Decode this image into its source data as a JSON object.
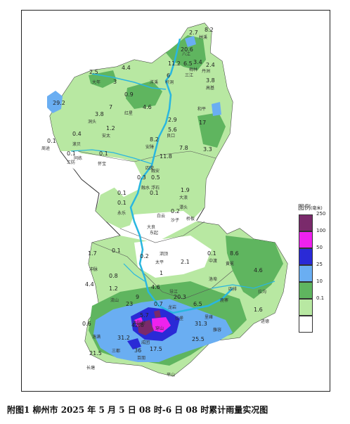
{
  "caption": "附图1  柳州市 2025 年 5 月 5 日 08 时-6 日 08 时累计雨量实况图",
  "legend": {
    "title": "图例",
    "unit": "(毫米)",
    "bins": [
      {
        "label": "250",
        "color": "#7a2a6b"
      },
      {
        "label": "100",
        "color": "#ee22ee"
      },
      {
        "label": "50",
        "color": "#2a2ad6"
      },
      {
        "label": "25",
        "color": "#6aaef2"
      },
      {
        "label": "10",
        "color": "#5fb55f"
      },
      {
        "label": "0.1",
        "color": "#b8e8a2"
      },
      {
        "label": "",
        "color": "#ffffff"
      }
    ]
  },
  "colors": {
    "region_light": "#b8e8a2",
    "region_medium": "#5fb55f",
    "region_blue": "#6aaef2",
    "region_darkblue": "#2a2ad6",
    "region_magenta": "#ee22ee",
    "region_purple": "#7a2a6b",
    "river": "#29b6e0",
    "boundary": "#333333"
  },
  "rain_values": [
    {
      "v": "2.7"
    },
    {
      "v": "8.2"
    },
    {
      "v": "20.6"
    },
    {
      "v": "11.2"
    },
    {
      "v": "6.5"
    },
    {
      "v": "3.4"
    },
    {
      "v": "2.4"
    },
    {
      "v": "6"
    },
    {
      "v": "3.8"
    },
    {
      "v": "4.4"
    },
    {
      "v": "2.5"
    },
    {
      "v": "3"
    },
    {
      "v": "29.2"
    },
    {
      "v": "0.9"
    },
    {
      "v": "4.6"
    },
    {
      "v": "3.8"
    },
    {
      "v": "7"
    },
    {
      "v": "1.2"
    },
    {
      "v": "2.9"
    },
    {
      "v": "5.6"
    },
    {
      "v": "17"
    },
    {
      "v": "0.1"
    },
    {
      "v": "0.4"
    },
    {
      "v": "8.2"
    },
    {
      "v": "3.3"
    },
    {
      "v": "0.1"
    },
    {
      "v": "0.1"
    },
    {
      "v": "7.8"
    },
    {
      "v": "11.8"
    },
    {
      "v": "0.3"
    },
    {
      "v": "0.5"
    },
    {
      "v": "1.9"
    },
    {
      "v": "0.1"
    },
    {
      "v": "0.1"
    },
    {
      "v": "0.2"
    },
    {
      "v": "0.1"
    },
    {
      "v": "1.7"
    },
    {
      "v": "0.1"
    },
    {
      "v": "0.2"
    },
    {
      "v": "0.1"
    },
    {
      "v": "8.6"
    },
    {
      "v": "0.8"
    },
    {
      "v": "2.1"
    },
    {
      "v": "1"
    },
    {
      "v": "4.6"
    },
    {
      "v": "4.4"
    },
    {
      "v": "1.2"
    },
    {
      "v": "20.3"
    },
    {
      "v": "6.5"
    },
    {
      "v": "1.6"
    },
    {
      "v": "0.6"
    },
    {
      "v": "31.3"
    },
    {
      "v": "42.8"
    },
    {
      "v": "31.2"
    },
    {
      "v": "25.5"
    },
    {
      "v": "21.5"
    },
    {
      "v": "36"
    },
    {
      "v": "0.7"
    },
    {
      "v": "4.6"
    },
    {
      "v": "9"
    },
    {
      "v": "5.7"
    },
    {
      "v": "17.5"
    },
    {
      "v": "23"
    }
  ],
  "place_names": [
    "林溪",
    "八江",
    "梅林",
    "杆洞",
    "三江",
    "丹洲",
    "大年",
    "洋溪",
    "高基",
    "红星",
    "洞头",
    "安太",
    "和平",
    "良口",
    "周途",
    "滚贝",
    "安陲",
    "同练",
    "三防",
    "怀宝",
    "四荣",
    "融水",
    "大浪",
    "永乐",
    "浮石",
    "白云",
    "融安",
    "潭头",
    "大良",
    "东起",
    "沙子",
    "桥板",
    "泗顶",
    "太平",
    "中渡",
    "黄冕",
    "冲脉",
    "鹿寨",
    "拉沟",
    "洛埠",
    "四排",
    "导江",
    "拉堡",
    "进德",
    "穿山",
    "洛满",
    "里雍",
    "三都",
    "百朋",
    "雒容",
    "长塘",
    "成团",
    "太阳村",
    "流山",
    "龙岩",
    "平山"
  ]
}
